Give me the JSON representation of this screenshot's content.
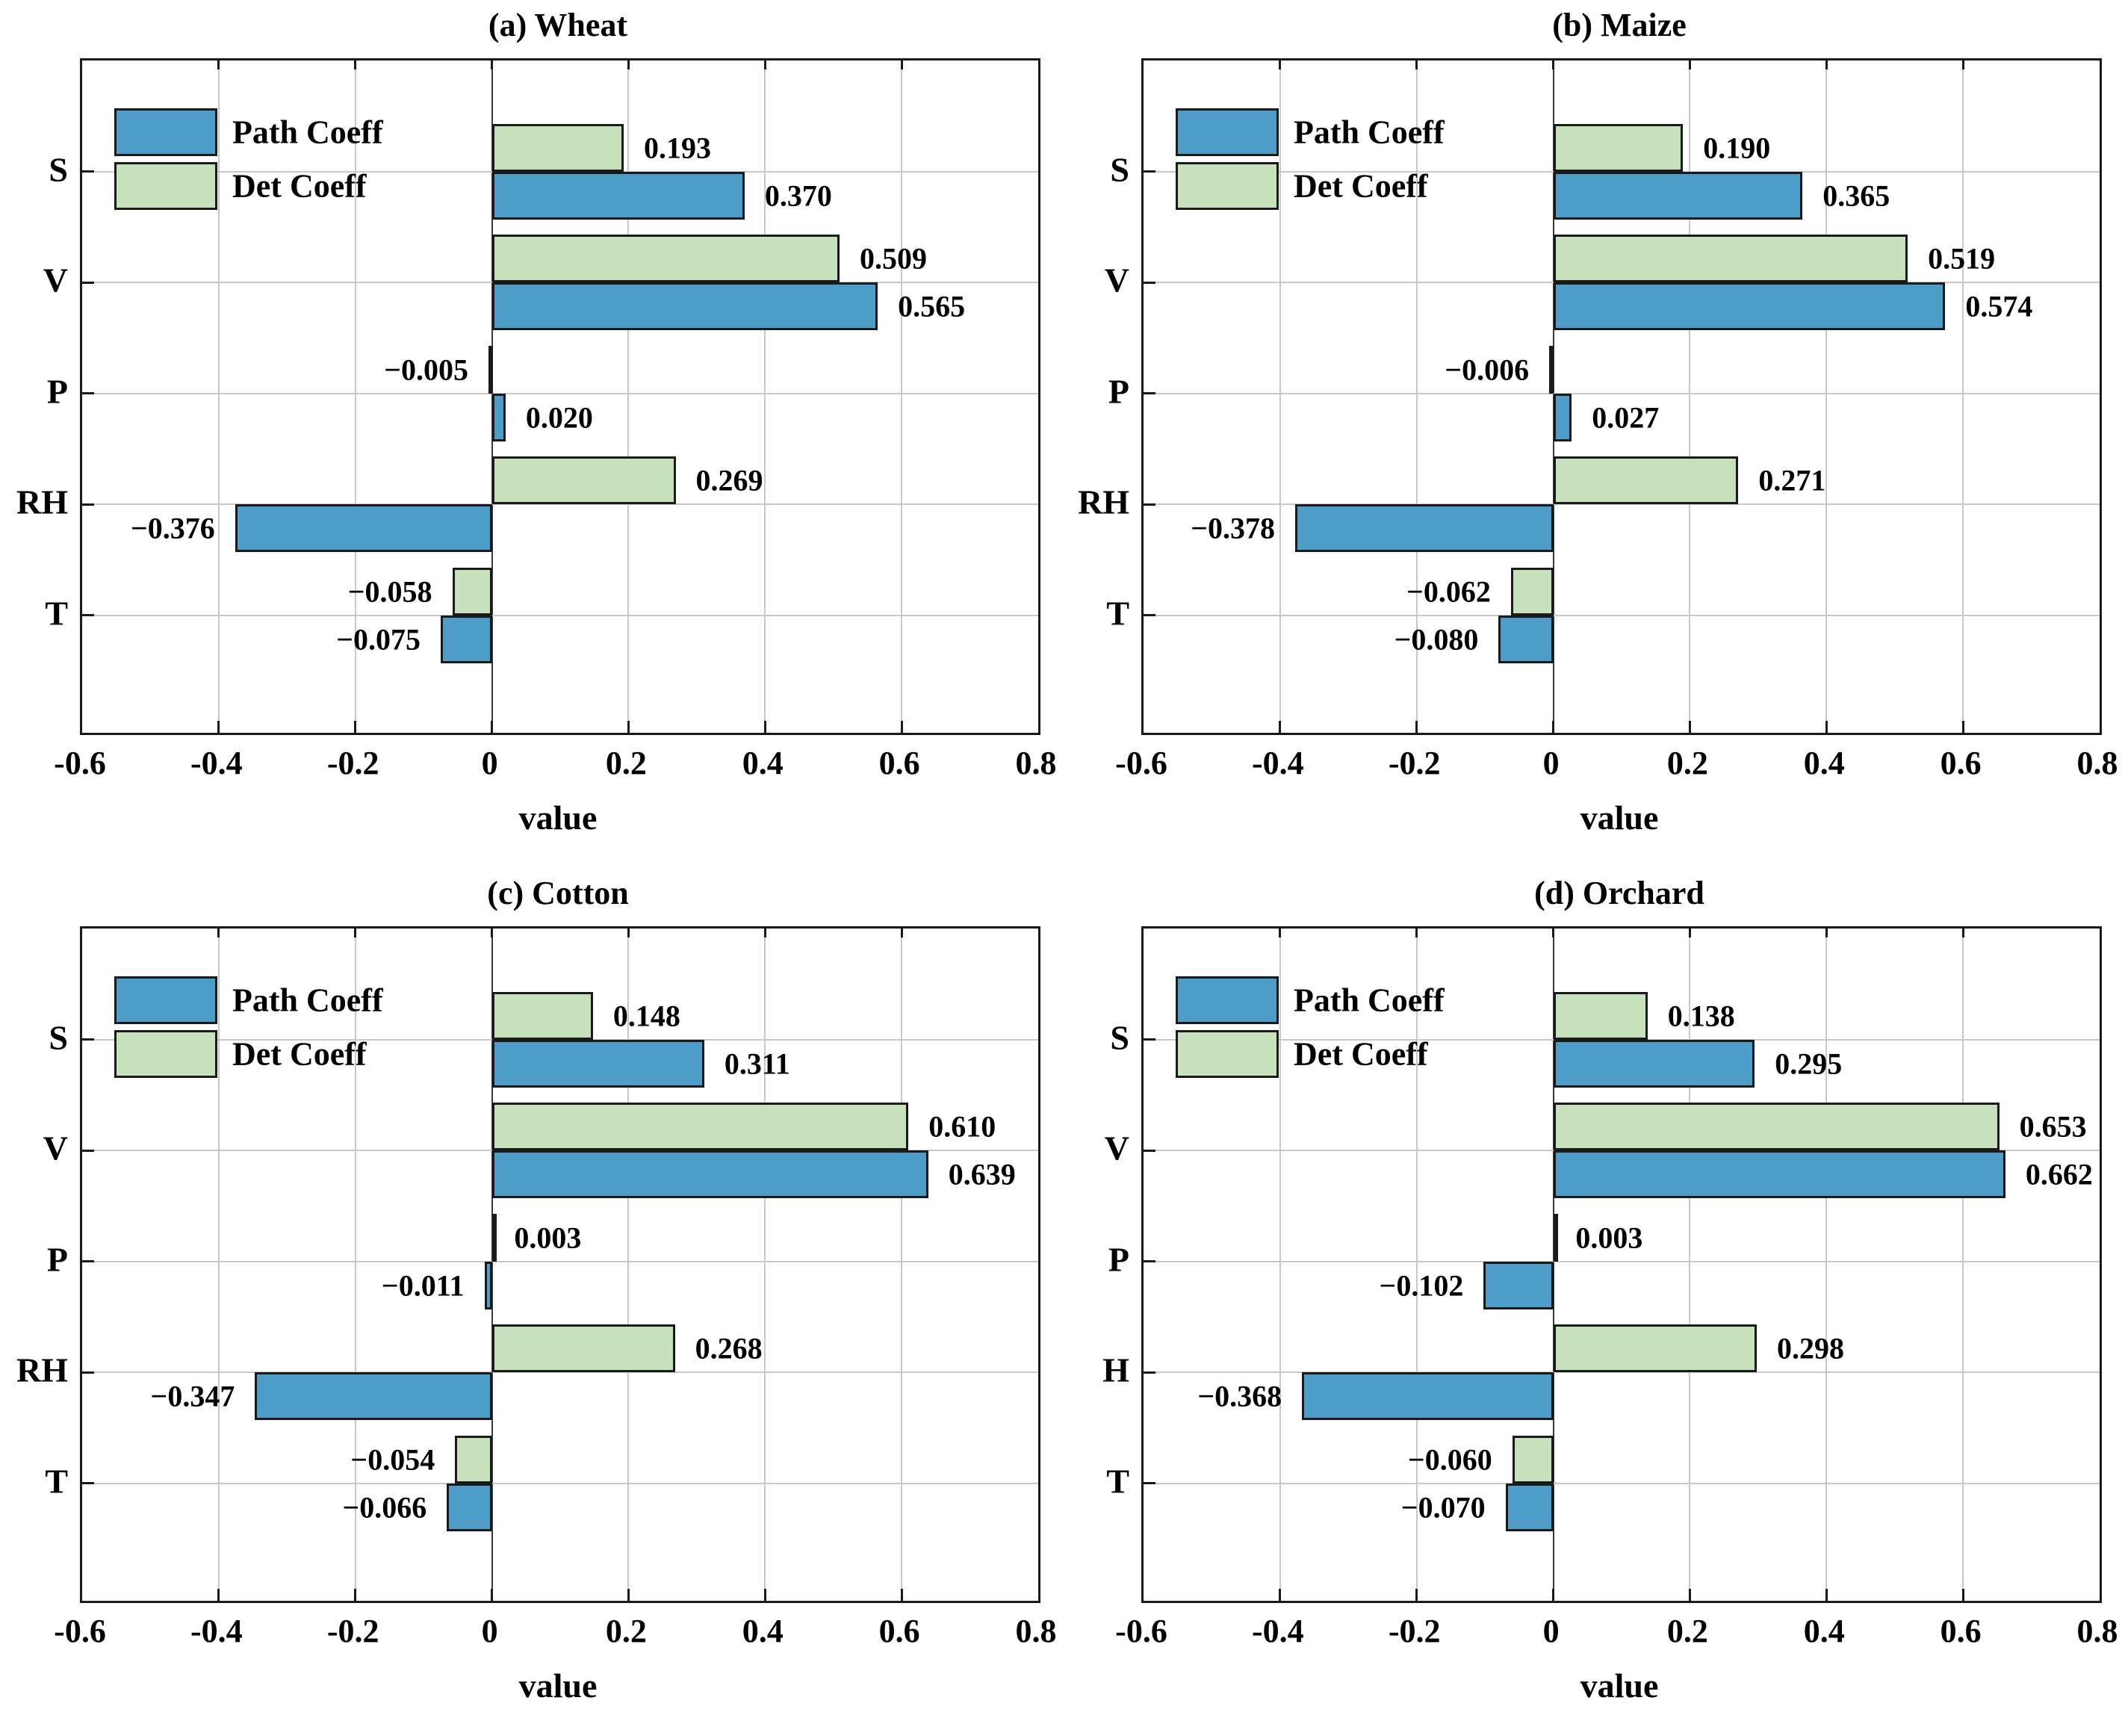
{
  "figure": {
    "xlabel": "value",
    "xlim": [
      -0.6,
      0.8
    ],
    "xticks_values": [
      -0.6,
      -0.4,
      -0.2,
      0,
      0.2,
      0.4,
      0.6,
      0.8
    ],
    "xticks": [
      "-0.6",
      "-0.4",
      "-0.2",
      "0",
      "0.2",
      "0.4",
      "0.6",
      "0.8"
    ],
    "legend": [
      {
        "label": "Path Coeff",
        "color": "#4e9dc8"
      },
      {
        "label": "Det Coeff",
        "color": "#c6e1bc"
      }
    ]
  },
  "colors": {
    "path_bar": "#4e9dc8",
    "det_bar": "#c6e1bc",
    "bar_border": "#1a1a1a",
    "grid": "#c8c8c8",
    "zero_line": "#3c3c3c",
    "plot_border": "#1a1a1a",
    "text": "#000000",
    "background": "#ffffff"
  },
  "chart_data": [
    {
      "type": "bar",
      "orientation": "horizontal",
      "title": "(a) Wheat",
      "xlabel": "value",
      "xlim": [
        -0.6,
        0.8
      ],
      "grid": true,
      "legend_position": "top-left",
      "categories": [
        "S",
        "V",
        "P",
        "RH",
        "T"
      ],
      "series": [
        {
          "name": "Path Coeff",
          "values": [
            0.37,
            0.565,
            0.02,
            -0.376,
            -0.075
          ],
          "labels": [
            "0.370",
            "0.565",
            "0.020",
            "−0.376",
            "−0.075"
          ]
        },
        {
          "name": "Det Coeff",
          "values": [
            0.193,
            0.509,
            -0.005,
            0.269,
            -0.058
          ],
          "labels": [
            "0.193",
            "0.509",
            "−0.005",
            "0.269",
            "−0.058"
          ]
        }
      ]
    },
    {
      "type": "bar",
      "orientation": "horizontal",
      "title": "(b) Maize",
      "xlabel": "value",
      "xlim": [
        -0.6,
        0.8
      ],
      "grid": true,
      "legend_position": "top-left",
      "categories": [
        "S",
        "V",
        "P",
        "RH",
        "T"
      ],
      "series": [
        {
          "name": "Path Coeff",
          "values": [
            0.365,
            0.574,
            0.027,
            -0.378,
            -0.08
          ],
          "labels": [
            "0.365",
            "0.574",
            "0.027",
            "−0.378",
            "−0.080"
          ]
        },
        {
          "name": "Det Coeff",
          "values": [
            0.19,
            0.519,
            -0.006,
            0.271,
            -0.062
          ],
          "labels": [
            "0.190",
            "0.519",
            "−0.006",
            "0.271",
            "−0.062"
          ]
        }
      ]
    },
    {
      "type": "bar",
      "orientation": "horizontal",
      "title": "(c) Cotton",
      "xlabel": "value",
      "xlim": [
        -0.6,
        0.8
      ],
      "grid": true,
      "legend_position": "top-left",
      "categories": [
        "S",
        "V",
        "P",
        "RH",
        "T"
      ],
      "series": [
        {
          "name": "Path Coeff",
          "values": [
            0.311,
            0.639,
            -0.011,
            -0.347,
            -0.066
          ],
          "labels": [
            "0.311",
            "0.639",
            "−0.011",
            "−0.347",
            "−0.066"
          ]
        },
        {
          "name": "Det Coeff",
          "values": [
            0.148,
            0.61,
            0.003,
            0.268,
            -0.054
          ],
          "labels": [
            "0.148",
            "0.610",
            "0.003",
            "0.268",
            "−0.054"
          ]
        }
      ]
    },
    {
      "type": "bar",
      "orientation": "horizontal",
      "title": "(d) Orchard",
      "xlabel": "value",
      "xlim": [
        -0.6,
        0.8
      ],
      "grid": true,
      "legend_position": "top-left",
      "categories": [
        "S",
        "V",
        "P",
        "H",
        "T"
      ],
      "series": [
        {
          "name": "Path Coeff",
          "values": [
            0.295,
            0.662,
            -0.102,
            -0.368,
            -0.07
          ],
          "labels": [
            "0.295",
            "0.662",
            "−0.102",
            "−0.368",
            "−0.070"
          ]
        },
        {
          "name": "Det Coeff",
          "values": [
            0.138,
            0.653,
            0.003,
            0.298,
            -0.06
          ],
          "labels": [
            "0.138",
            "0.653",
            "0.003",
            "0.298",
            "−0.060"
          ]
        }
      ]
    }
  ]
}
